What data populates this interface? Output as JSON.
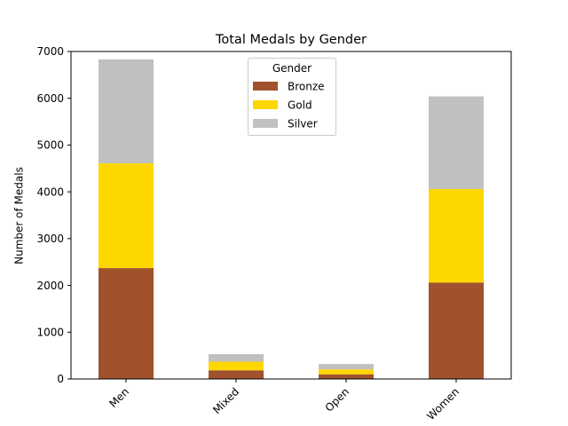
{
  "chart_data": {
    "type": "bar",
    "stacked": true,
    "title": "Total Medals by Gender",
    "xlabel": "",
    "ylabel": "Number of Medals",
    "categories": [
      "Men",
      "Mixed",
      "Open",
      "Women"
    ],
    "series": [
      {
        "name": "Bronze",
        "color": "#a0522d",
        "values": [
          2370,
          185,
          100,
          2060
        ]
      },
      {
        "name": "Gold",
        "color": "#ffd700",
        "values": [
          2240,
          185,
          105,
          2000
        ]
      },
      {
        "name": "Silver",
        "color": "#c0c0c0",
        "values": [
          2220,
          160,
          115,
          1980
        ]
      }
    ],
    "ylim": [
      0,
      7000
    ],
    "yticks": [
      0,
      1000,
      2000,
      3000,
      4000,
      5000,
      6000,
      7000
    ],
    "grid": false,
    "legend": {
      "title": "Gender",
      "placement": "top-center"
    }
  }
}
